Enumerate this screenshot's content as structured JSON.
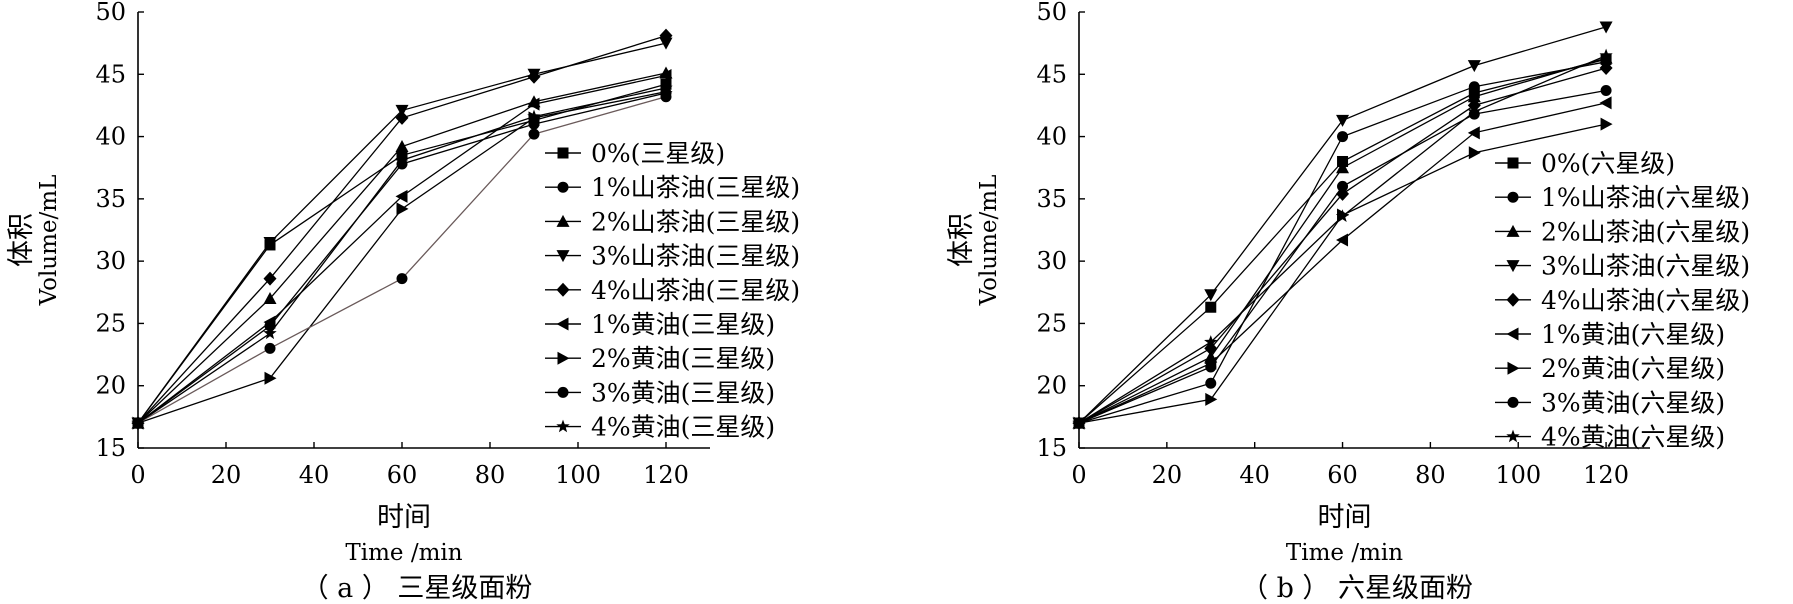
{
  "chart_data": [
    {
      "type": "line",
      "caption": "（ a ） 三星级面粉",
      "xlabel_cn": "时间",
      "xlabel_en": "Time /min",
      "ylabel_cn": "体积",
      "ylabel_en": "Volume/mL",
      "xlim": [
        0,
        130
      ],
      "ylim": [
        15,
        50
      ],
      "xticks": [
        0,
        20,
        40,
        60,
        80,
        100,
        120
      ],
      "yticks": [
        15,
        20,
        25,
        30,
        35,
        40,
        45,
        50
      ],
      "grid": false,
      "legend_position": "right",
      "x": [
        0,
        30,
        60,
        90,
        120
      ],
      "series": [
        {
          "name": "0%(三星级)",
          "marker": "square",
          "values": [
            17.0,
            31.3,
            38.5,
            41.3,
            44.2
          ]
        },
        {
          "name": "1%山茶油(三星级)",
          "marker": "circle",
          "values": [
            17.0,
            24.8,
            37.8,
            41.0,
            43.5
          ]
        },
        {
          "name": "2%山茶油(三星级)",
          "marker": "triangle-up",
          "values": [
            17.0,
            27.0,
            39.2,
            42.8,
            45.1
          ]
        },
        {
          "name": "3%山茶油(三星级)",
          "marker": "triangle-down",
          "values": [
            17.0,
            31.5,
            42.1,
            45.0,
            47.5
          ]
        },
        {
          "name": "4%山茶油(三星级)",
          "marker": "diamond",
          "values": [
            17.0,
            28.6,
            41.5,
            44.8,
            48.1
          ]
        },
        {
          "name": "1%黄油(三星级)",
          "marker": "triangle-left",
          "values": [
            17.0,
            25.1,
            35.2,
            42.6,
            44.9
          ]
        },
        {
          "name": "2%黄油(三星级)",
          "marker": "triangle-right",
          "values": [
            17.0,
            20.6,
            34.2,
            41.5,
            43.6
          ]
        },
        {
          "name": "3%黄油(三星级)",
          "marker": "circle",
          "values": [
            17.0,
            23.0,
            28.6,
            40.2,
            43.2
          ]
        },
        {
          "name": "4%黄油(三星级)",
          "marker": "star",
          "values": [
            17.0,
            24.2,
            38.1,
            41.6,
            43.9
          ]
        }
      ]
    },
    {
      "type": "line",
      "caption": "（ b ） 六星级面粉",
      "xlabel_cn": "时间",
      "xlabel_en": "Time /min",
      "ylabel_cn": "体积",
      "ylabel_en": "Volume/mL",
      "xlim": [
        0,
        130
      ],
      "ylim": [
        15,
        50
      ],
      "xticks": [
        0,
        20,
        40,
        60,
        80,
        100,
        120
      ],
      "yticks": [
        15,
        20,
        25,
        30,
        35,
        40,
        45,
        50
      ],
      "grid": false,
      "legend_position": "right",
      "x": [
        0,
        30,
        60,
        90,
        120
      ],
      "series": [
        {
          "name": "0%(六星级)",
          "marker": "square",
          "values": [
            17.0,
            26.3,
            38.0,
            43.5,
            46.2
          ]
        },
        {
          "name": "1%山茶油(六星级)",
          "marker": "circle",
          "values": [
            17.0,
            20.2,
            40.0,
            44.0,
            46.0
          ]
        },
        {
          "name": "2%山茶油(六星级)",
          "marker": "triangle-up",
          "values": [
            17.0,
            22.3,
            37.5,
            43.2,
            46.3
          ]
        },
        {
          "name": "3%山茶油(六星级)",
          "marker": "triangle-down",
          "values": [
            17.0,
            27.3,
            41.3,
            45.7,
            48.8
          ]
        },
        {
          "name": "4%山茶油(六星级)",
          "marker": "diamond",
          "values": [
            17.0,
            23.0,
            35.4,
            42.5,
            45.5
          ]
        },
        {
          "name": "1%黄油(六星级)",
          "marker": "triangle-left",
          "values": [
            17.0,
            21.8,
            31.7,
            40.3,
            42.7
          ]
        },
        {
          "name": "2%黄油(六星级)",
          "marker": "triangle-right",
          "values": [
            17.0,
            18.9,
            33.7,
            38.7,
            41.0
          ]
        },
        {
          "name": "3%黄油(六星级)",
          "marker": "circle",
          "values": [
            17.0,
            21.5,
            36.0,
            41.8,
            43.7
          ]
        },
        {
          "name": "4%黄油(六星级)",
          "marker": "star",
          "values": [
            17.0,
            23.5,
            33.6,
            42.0,
            46.5
          ]
        }
      ]
    }
  ]
}
